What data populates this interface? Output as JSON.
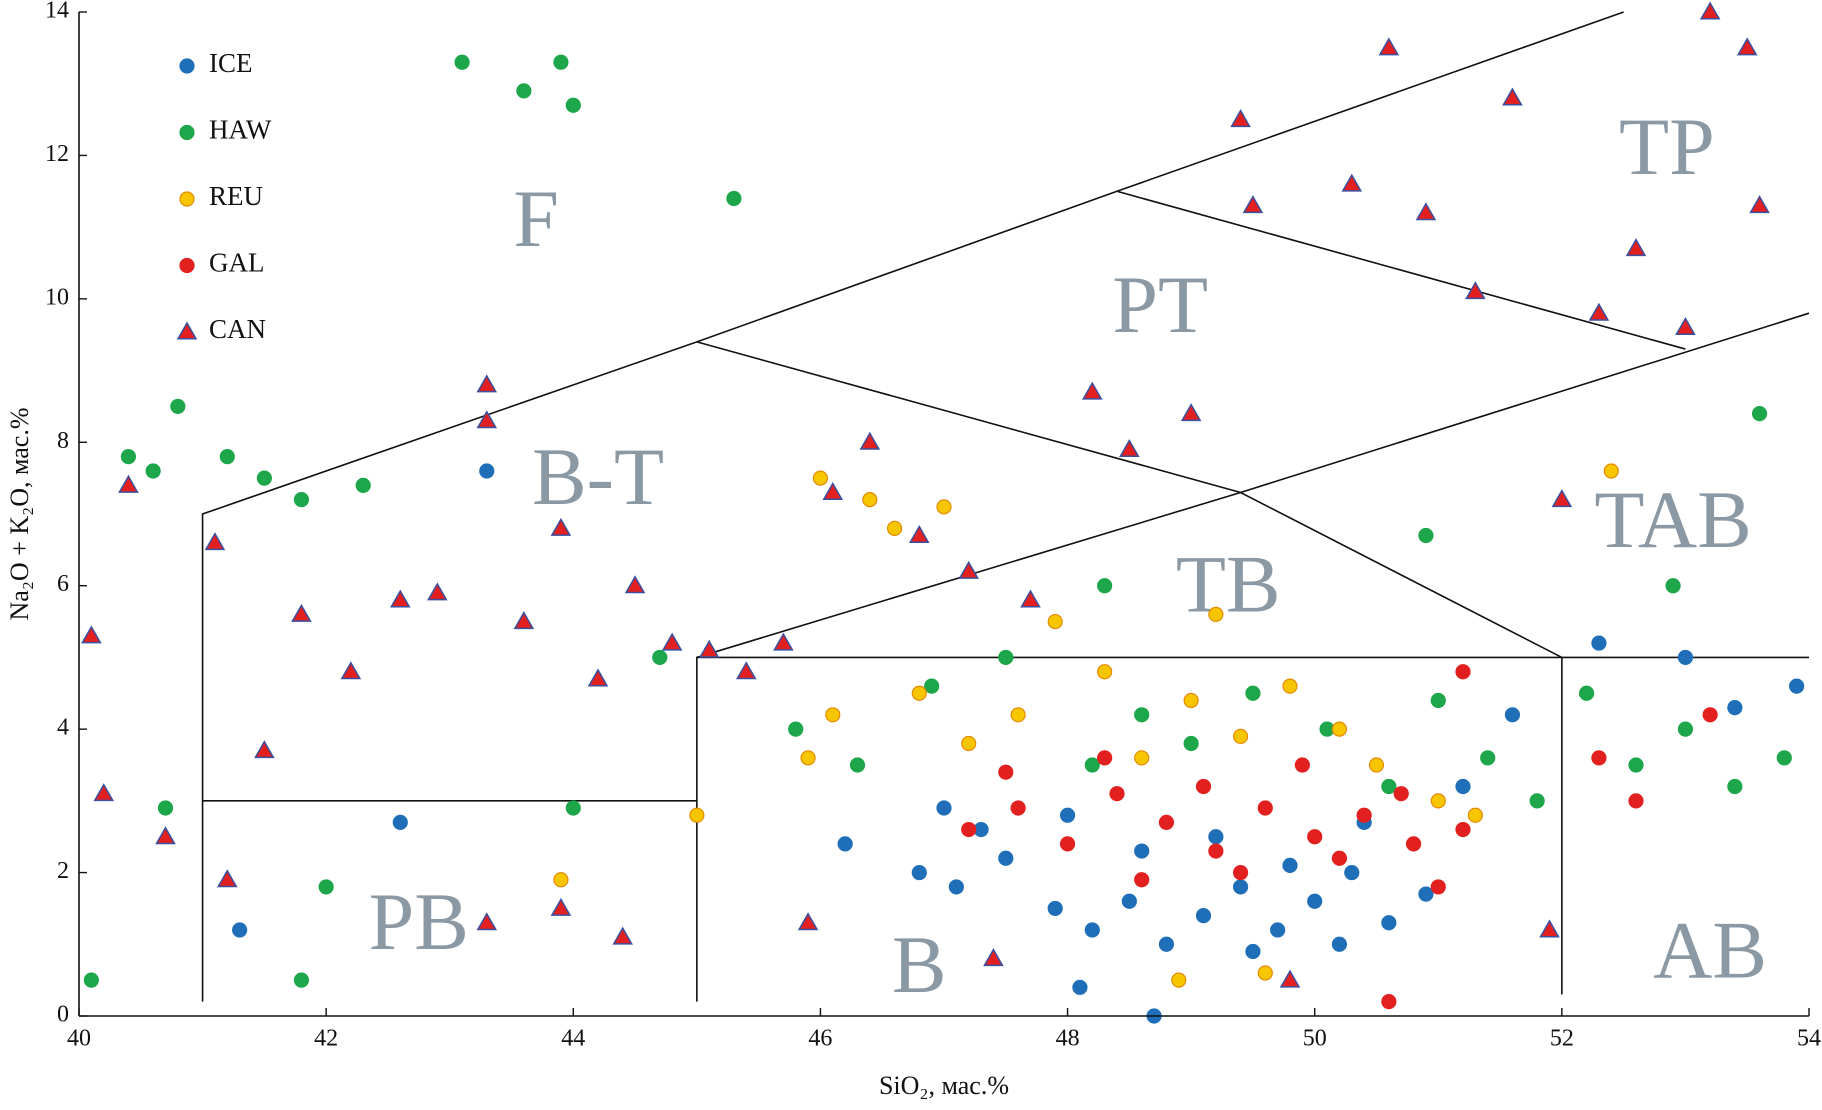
{
  "chart_data": {
    "type": "scatter",
    "xlabel": "SiO₂, мас.%",
    "ylabel": "Na₂O + K₂O, мас.%",
    "xlim": [
      40,
      54
    ],
    "ylim": [
      0,
      14
    ],
    "xticks": [
      40,
      42,
      44,
      46,
      48,
      50,
      52,
      54
    ],
    "yticks": [
      0,
      2,
      4,
      6,
      8,
      10,
      12,
      14
    ],
    "grid": false,
    "legend": "upper left",
    "boundaries": [
      [
        [
          41,
          0.2
        ],
        [
          41,
          7
        ],
        [
          45,
          9.4
        ],
        [
          48.4,
          11.5
        ],
        [
          52.5,
          14
        ]
      ],
      [
        [
          41,
          3
        ],
        [
          45,
          3
        ]
      ],
      [
        [
          45,
          0.2
        ],
        [
          45,
          5
        ],
        [
          52,
          5
        ],
        [
          54,
          5
        ]
      ],
      [
        [
          52,
          5
        ],
        [
          52,
          0.3
        ]
      ],
      [
        [
          45,
          9.4
        ],
        [
          49.4,
          7.3
        ],
        [
          52,
          5
        ]
      ],
      [
        [
          45,
          5
        ],
        [
          49.4,
          7.3
        ],
        [
          54,
          9.8
        ]
      ],
      [
        [
          48.4,
          11.5
        ],
        [
          53,
          9.3
        ]
      ]
    ],
    "annotations": [
      {
        "text": "F",
        "x": 43.7,
        "y": 11
      },
      {
        "text": "PT",
        "x": 48.75,
        "y": 9.8
      },
      {
        "text": "TP",
        "x": 52.85,
        "y": 12
      },
      {
        "text": "B-T",
        "x": 44.2,
        "y": 7.4
      },
      {
        "text": "TB",
        "x": 49.3,
        "y": 5.9
      },
      {
        "text": "TAB",
        "x": 52.9,
        "y": 6.8
      },
      {
        "text": "PB",
        "x": 42.75,
        "y": 1.2
      },
      {
        "text": "B",
        "x": 46.8,
        "y": 0.6
      },
      {
        "text": "AB",
        "x": 53.2,
        "y": 0.8
      }
    ],
    "series": [
      {
        "name": "ICE",
        "color": "#1f6fb8",
        "marker": "circle",
        "x": [
          46.2,
          46.8,
          47.1,
          47.5,
          47.9,
          48.2,
          48.5,
          48.8,
          49.1,
          49.4,
          49.7,
          50.0,
          50.3,
          50.6,
          50.9,
          47.3,
          48.0,
          48.6,
          49.2,
          49.8,
          50.4,
          51.2,
          51.6,
          52.3,
          53.0,
          53.4,
          53.9,
          43.3,
          42.6,
          41.3,
          48.7,
          48.1,
          47.0,
          49.5,
          50.2
        ],
        "values": [
          2.4,
          2.0,
          1.8,
          2.2,
          1.5,
          1.2,
          1.6,
          1.0,
          1.4,
          1.8,
          1.2,
          1.6,
          2.0,
          1.3,
          1.7,
          2.6,
          2.8,
          2.3,
          2.5,
          2.1,
          2.7,
          3.2,
          4.2,
          5.2,
          5.0,
          4.3,
          4.6,
          7.6,
          2.7,
          1.2,
          0.0,
          0.4,
          2.9,
          0.9,
          1.0
        ]
      },
      {
        "name": "HAW",
        "color": "#1da64a",
        "marker": "circle",
        "x": [
          43.1,
          43.9,
          43.6,
          44.0,
          45.3,
          40.4,
          40.6,
          40.8,
          41.2,
          41.5,
          41.8,
          42.3,
          42.0,
          40.1,
          40.7,
          41.8,
          44.0,
          44.7,
          45.8,
          46.3,
          46.9,
          47.5,
          48.2,
          48.6,
          49.0,
          49.5,
          50.1,
          50.6,
          51.0,
          51.4,
          51.8,
          52.2,
          52.6,
          53.0,
          53.4,
          53.8,
          53.6,
          52.9,
          48.3,
          50.9
        ],
        "values": [
          13.3,
          13.3,
          12.9,
          12.7,
          11.4,
          7.8,
          7.6,
          8.5,
          7.8,
          7.5,
          7.2,
          7.4,
          1.8,
          0.5,
          2.9,
          0.5,
          2.9,
          5.0,
          4.0,
          3.5,
          4.6,
          5.0,
          3.5,
          4.2,
          3.8,
          4.5,
          4.0,
          3.2,
          4.4,
          3.6,
          3.0,
          4.5,
          3.5,
          4.0,
          3.2,
          3.6,
          8.4,
          6.0,
          6.0,
          6.7
        ]
      },
      {
        "name": "REU",
        "color": "#f7c600",
        "edgecolor": "#e58a00",
        "marker": "circle",
        "x": [
          46.0,
          46.4,
          46.8,
          47.2,
          47.6,
          47.9,
          48.3,
          48.6,
          49.0,
          49.4,
          49.8,
          50.2,
          50.5,
          46.1,
          45.9,
          47.0,
          48.9,
          49.6,
          51.0,
          51.3,
          52.4,
          43.9,
          45.0,
          49.2,
          46.6
        ],
        "values": [
          7.5,
          7.2,
          4.5,
          3.8,
          4.2,
          5.5,
          4.8,
          3.6,
          4.4,
          3.9,
          4.6,
          4.0,
          3.5,
          4.2,
          3.6,
          7.1,
          0.5,
          0.6,
          3.0,
          2.8,
          7.6,
          1.9,
          2.8,
          5.6,
          6.8
        ]
      },
      {
        "name": "GAL",
        "color": "#e2201f",
        "marker": "circle",
        "x": [
          47.2,
          47.6,
          48.0,
          48.4,
          48.8,
          49.2,
          49.6,
          50.0,
          50.4,
          50.8,
          51.2,
          47.5,
          48.3,
          49.1,
          49.9,
          50.7,
          48.6,
          49.4,
          50.2,
          51.0,
          52.3,
          52.6,
          53.2,
          50.6,
          51.2
        ],
        "values": [
          2.6,
          2.9,
          2.4,
          3.1,
          2.7,
          2.3,
          2.9,
          2.5,
          2.8,
          2.4,
          2.6,
          3.4,
          3.6,
          3.2,
          3.5,
          3.1,
          1.9,
          2.0,
          2.2,
          1.8,
          3.6,
          3.0,
          4.2,
          0.2,
          4.8
        ]
      },
      {
        "name": "CAN",
        "color": "#e2201f",
        "edgecolor": "#3a4fa0",
        "marker": "triangle",
        "x": [
          40.1,
          40.2,
          40.4,
          40.7,
          41.1,
          41.2,
          41.5,
          41.8,
          42.2,
          42.6,
          42.9,
          43.3,
          43.3,
          43.6,
          43.9,
          44.2,
          44.5,
          44.8,
          45.1,
          45.4,
          45.7,
          46.1,
          46.4,
          46.8,
          47.2,
          47.7,
          48.2,
          48.5,
          49.0,
          49.4,
          49.5,
          50.3,
          50.6,
          50.9,
          51.3,
          51.6,
          52.0,
          52.3,
          52.6,
          53.0,
          53.2,
          53.5,
          53.6,
          43.3,
          43.9,
          44.4,
          45.9,
          47.4,
          49.8,
          51.9
        ],
        "values": [
          5.3,
          3.1,
          7.4,
          2.5,
          6.6,
          1.9,
          3.7,
          5.6,
          4.8,
          5.8,
          5.9,
          8.3,
          8.8,
          5.5,
          6.8,
          4.7,
          6.0,
          5.2,
          5.1,
          4.8,
          5.2,
          7.3,
          8.0,
          6.7,
          6.2,
          5.8,
          8.7,
          7.9,
          8.4,
          12.5,
          11.3,
          11.6,
          13.5,
          11.2,
          10.1,
          12.8,
          7.2,
          9.8,
          10.7,
          9.6,
          14.0,
          13.5,
          11.3,
          1.3,
          1.5,
          1.1,
          1.3,
          0.8,
          0.5,
          1.2
        ]
      }
    ]
  }
}
